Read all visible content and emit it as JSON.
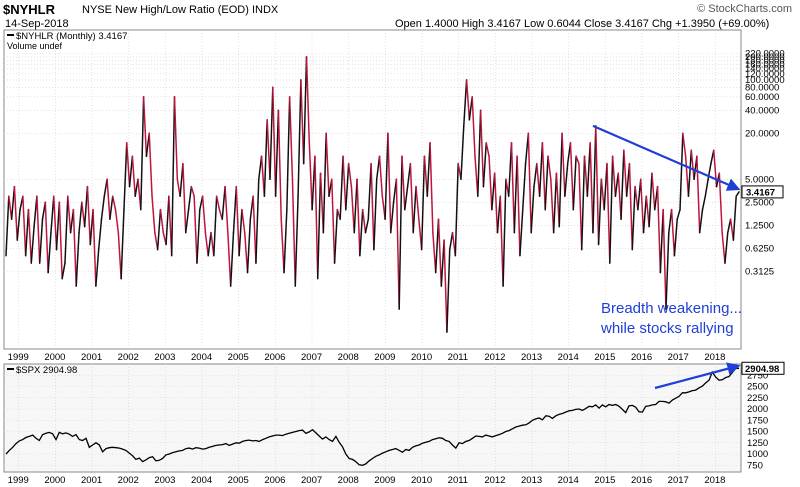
{
  "header": {
    "symbol": "$NYHLR",
    "title": "NYSE New High/Low Ratio (EOD)",
    "exchange": "INDX",
    "date": "14-Sep-2018",
    "ohlc": "Open 1.4000  High 3.4167  Low 0.6044  Close 3.4167  Chg +1.3950 (+69.00%)",
    "brand": "© StockCharts.com",
    "up_arrow": "▲"
  },
  "colors": {
    "up": "#111111",
    "down": "#c0143c",
    "annotation": "#1f3fd6",
    "grid": "#d0d0d0",
    "price_bg": "#f7f7f7"
  },
  "chart_data": [
    {
      "type": "line",
      "legend": [
        "$NYHLR (Monthly) 3.4167",
        "Volume undef"
      ],
      "scale": "log",
      "ylim": [
        0.03,
        450
      ],
      "yticks": [
        0.3125,
        0.625,
        1.25,
        2.5,
        5.0,
        20.0,
        40.0,
        60.0,
        80.0,
        100.0,
        120.0,
        140.0,
        160.0,
        180.0,
        200.0,
        220.0
      ],
      "ytick_labels": [
        "0.3125",
        "0.6250",
        "1.2500",
        "2.5000",
        "5.0000",
        "20.0000",
        "40.0000",
        "60.0000",
        "80.0000",
        "100.0000",
        "120.0000",
        "140.0000",
        "160.0000",
        "180.0000",
        "200.0000",
        "220.0000"
      ],
      "xticks": [
        "1999",
        "2000",
        "2001",
        "2002",
        "2003",
        "2004",
        "2005",
        "2006",
        "2007",
        "2008",
        "2009",
        "2010",
        "2011",
        "2012",
        "2013",
        "2014",
        "2015",
        "2016",
        "2017",
        "2018"
      ],
      "x_start": 1998.6,
      "x_end": 2018.7,
      "last_value_label": "3.4167",
      "values": [
        0.5,
        3,
        1.5,
        4,
        0.8,
        2,
        3,
        0.5,
        2,
        0.4,
        1.2,
        3,
        0.4,
        1.5,
        2.5,
        0.3,
        1,
        3,
        0.6,
        2.5,
        0.25,
        0.4,
        3,
        1,
        2,
        0.2,
        1,
        2.5,
        1.2,
        4,
        0.7,
        2,
        0.2,
        0.6,
        1.5,
        3,
        5,
        1.5,
        3,
        2,
        1,
        0.25,
        2,
        15,
        4,
        10,
        3,
        5,
        2,
        60,
        10,
        20,
        3,
        1,
        0.6,
        2,
        1,
        0.7,
        3,
        0.5,
        60,
        5,
        3,
        8,
        1,
        2,
        4,
        3,
        0.4,
        2,
        3,
        1,
        0.5,
        1,
        0.5,
        3,
        2,
        1.5,
        4,
        1,
        0.2,
        1,
        4,
        0.5,
        2,
        1,
        0.3,
        1.5,
        3,
        0.4,
        5,
        10,
        3,
        30,
        5,
        80,
        3,
        40,
        1.5,
        0.3,
        2,
        60,
        5,
        0.2,
        3,
        100,
        8,
        200,
        15,
        2,
        10,
        0.25,
        6,
        1,
        20,
        3,
        5,
        0.4,
        2,
        1.5,
        10,
        2,
        8,
        4,
        1,
        5,
        0.5,
        2,
        1,
        1.5,
        8,
        0.6,
        5,
        10,
        3,
        1.5,
        20,
        1,
        2.5,
        5,
        0.1,
        10,
        2,
        4,
        8,
        1,
        4,
        1.5,
        0.6,
        10,
        3,
        15,
        1,
        0.3,
        1.5,
        0.2,
        0.8,
        0.05,
        0.6,
        1,
        0.5,
        8,
        5,
        25,
        100,
        30,
        60,
        10,
        3,
        40,
        4,
        15,
        10,
        2,
        6,
        1,
        3,
        0.2,
        5,
        3,
        15,
        1,
        10,
        0.5,
        2,
        8,
        20,
        1,
        4,
        8,
        3,
        15,
        2,
        10,
        5,
        1,
        6,
        1.2,
        20,
        3,
        8,
        15,
        2,
        10,
        8,
        0.6,
        10,
        3,
        15,
        1,
        25,
        0.7,
        5,
        2,
        8,
        0.4,
        10,
        3,
        6,
        1.5,
        12,
        3,
        8,
        0.6,
        4,
        2,
        5,
        1,
        3,
        1.2,
        6,
        2,
        4,
        0.3,
        2,
        0.1,
        1,
        2,
        0.5,
        1.5,
        2,
        20,
        10,
        3,
        12,
        5,
        10,
        1,
        2,
        3,
        5,
        8,
        12,
        4,
        6,
        1,
        0.4,
        1,
        1.5,
        0.8,
        3,
        3.4167
      ]
    },
    {
      "type": "line",
      "legend": [
        "$SPX 2904.98"
      ],
      "ylim": [
        600,
        3000
      ],
      "yticks": [
        750,
        1000,
        1250,
        1500,
        1750,
        2000,
        2250,
        2500,
        2750
      ],
      "ytick_labels": [
        "750",
        "1000",
        "1250",
        "1500",
        "1750",
        "2000",
        "2250",
        "2500",
        "2750"
      ],
      "last_value_label": "2904.98",
      "values": [
        1000,
        1080,
        1150,
        1230,
        1290,
        1320,
        1370,
        1390,
        1420,
        1350,
        1300,
        1430,
        1460,
        1480,
        1450,
        1320,
        1480,
        1450,
        1470,
        1440,
        1390,
        1430,
        1320,
        1300,
        1350,
        1150,
        1200,
        1250,
        1200,
        1050,
        1120,
        1140,
        1150,
        1140,
        1130,
        1110,
        1080,
        1020,
        960,
        880,
        910,
        830,
        870,
        920,
        940,
        850,
        860,
        900,
        980,
        1000,
        1030,
        1050,
        1070,
        1080,
        1120,
        1130,
        1110,
        1140,
        1130,
        1110,
        1120,
        1150,
        1170,
        1190,
        1200,
        1210,
        1230,
        1190,
        1220,
        1250,
        1240,
        1280,
        1300,
        1310,
        1290,
        1300,
        1280,
        1320,
        1350,
        1380,
        1400,
        1420,
        1420,
        1410,
        1440,
        1460,
        1480,
        1500,
        1520,
        1530,
        1460,
        1490,
        1540,
        1470,
        1400,
        1330,
        1380,
        1320,
        1280,
        1390,
        1260,
        1160,
        1000,
        900,
        880,
        830,
        760,
        750,
        780,
        850,
        900,
        950,
        980,
        1020,
        1050,
        1080,
        1100,
        1120,
        1080,
        1040,
        1100,
        1080,
        1150,
        1180,
        1200,
        1240,
        1260,
        1280,
        1320,
        1340,
        1360,
        1350,
        1300,
        1280,
        1200,
        1130,
        1250,
        1230,
        1280,
        1300,
        1350,
        1400,
        1390,
        1380,
        1420,
        1400,
        1380,
        1410,
        1430,
        1460,
        1500,
        1520,
        1560,
        1600,
        1620,
        1640,
        1650,
        1690,
        1750,
        1780,
        1800,
        1760,
        1850,
        1840,
        1790,
        1850,
        1880,
        1900,
        1930,
        1960,
        1970,
        1990,
        2000,
        1970,
        2010,
        2060,
        2050,
        2090,
        2020,
        2090,
        2050,
        2100,
        2080,
        2100,
        2060,
        1990,
        1920,
        2070,
        2080,
        2040,
        1940,
        1930,
        2060,
        2070,
        2090,
        2100,
        2170,
        2170,
        2160,
        2130,
        2200,
        2240,
        2280,
        2360,
        2360,
        2380,
        2410,
        2420,
        2470,
        2510,
        2580,
        2640,
        2820,
        2710,
        2640,
        2650,
        2700,
        2720,
        2810,
        2900,
        2904.98
      ]
    }
  ],
  "annotations": {
    "text_line1": "Breadth weakening...",
    "text_line2": "while stocks rallying"
  }
}
